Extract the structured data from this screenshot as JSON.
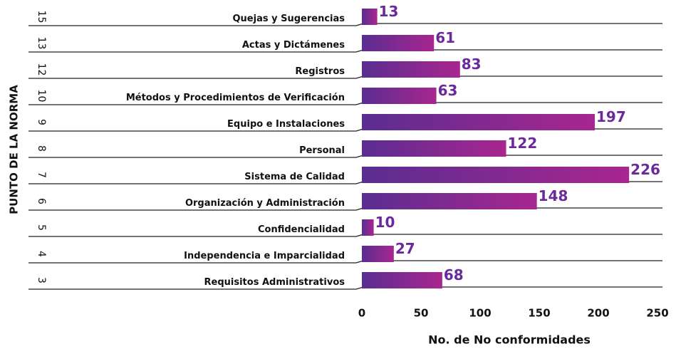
{
  "chart_data": {
    "type": "bar",
    "orientation": "horizontal",
    "xlabel": "No. de No conformidades",
    "ylabel": "PUNTO DE LA NORMA",
    "row_numbers": [
      "15",
      "13",
      "12",
      "10",
      "9",
      "8",
      "7",
      "6",
      "5",
      "4",
      "3"
    ],
    "categories": [
      "Quejas y Sugerencias",
      "Actas y Dictámenes",
      "Registros",
      "Métodos y Procedimientos de Verificación",
      "Equipo e Instalaciones",
      "Personal",
      "Sistema de Calidad",
      "Organización y Administración",
      "Confidencialidad",
      "Independencia e Imparcialidad",
      "Requisitos Administrativos"
    ],
    "values": [
      13,
      61,
      83,
      63,
      197,
      122,
      226,
      148,
      10,
      27,
      68
    ],
    "gradient": [
      "#5a2d91",
      "#a8268f"
    ],
    "label_color": "#6b2a9c",
    "xlim": [
      0,
      250
    ],
    "xticks": [
      0,
      50,
      100,
      150,
      200,
      250
    ]
  }
}
